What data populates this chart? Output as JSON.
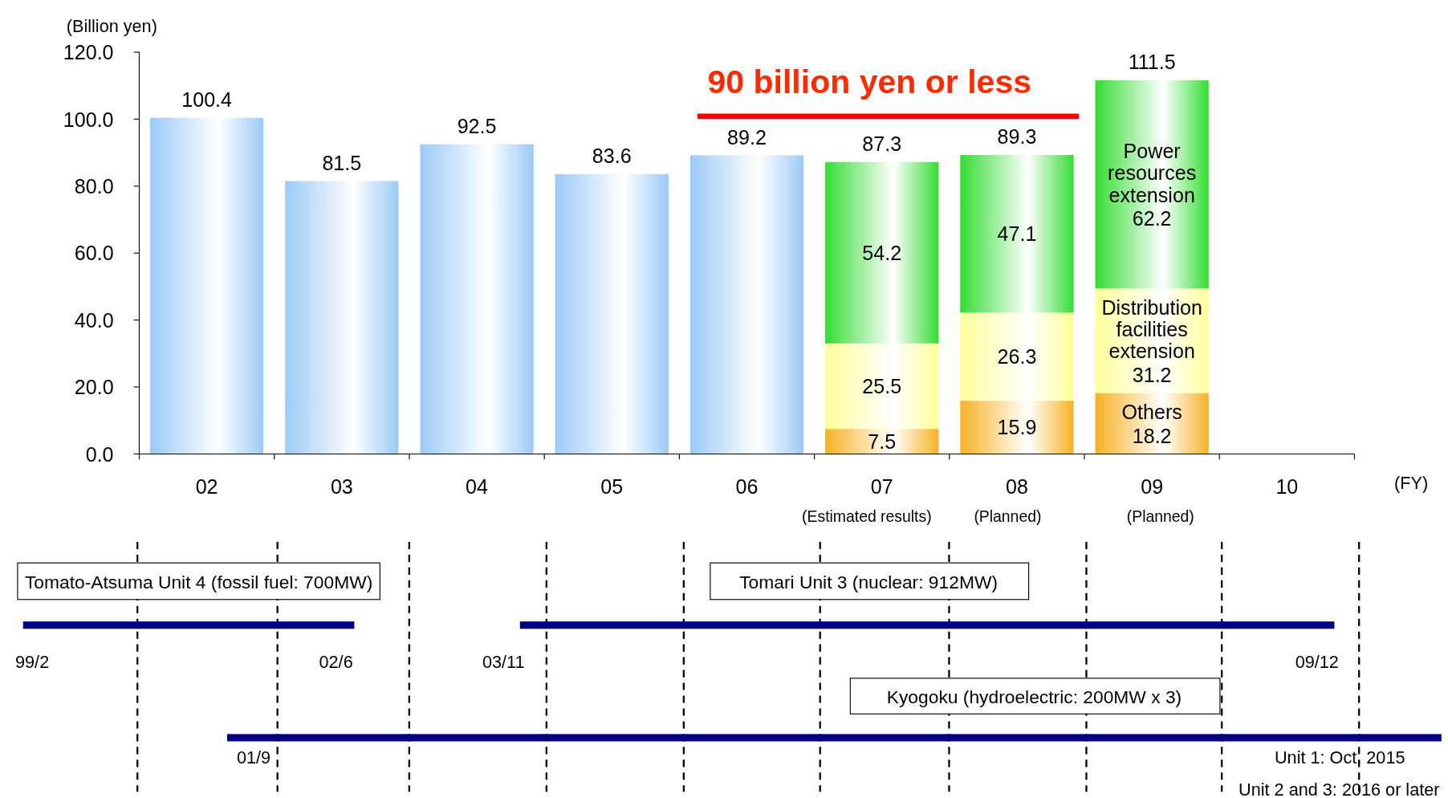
{
  "chart_data": {
    "type": "bar",
    "stacked": true,
    "ylabel": "(Billion yen)",
    "xlabel": "(FY)",
    "categories": [
      "02",
      "03",
      "04",
      "05",
      "06",
      "07",
      "08",
      "09",
      "10"
    ],
    "series": [
      {
        "color": "#9ccaf6",
        "values": [
          100.4,
          81.5,
          92.5,
          83.6,
          89.2,
          null,
          null,
          null,
          null
        ]
      },
      {
        "name": "Others",
        "color": "#f5b226",
        "values": [
          null,
          null,
          null,
          null,
          null,
          7.5,
          15.9,
          18.2,
          null
        ]
      },
      {
        "name": "Distribution facilities extension",
        "color": "#ffff9a",
        "values": [
          null,
          null,
          null,
          null,
          null,
          25.5,
          26.3,
          31.2,
          null
        ]
      },
      {
        "name": "Power resources extension",
        "color": "#33dd33",
        "values": [
          null,
          null,
          null,
          null,
          null,
          54.2,
          47.1,
          62.2,
          null
        ]
      }
    ],
    "totals": [
      null,
      null,
      null,
      null,
      null,
      "87.3",
      "89.3",
      "111.5",
      null
    ],
    "data_labels": true,
    "grid": false,
    "ylim": [
      0,
      120
    ],
    "yticks": [
      {
        "value": 0,
        "label": "0.0"
      },
      {
        "value": 20,
        "label": "20.0"
      },
      {
        "value": 40,
        "label": "40.0"
      },
      {
        "value": 60,
        "label": "60.0"
      },
      {
        "value": 80,
        "label": "80.0"
      },
      {
        "value": 100,
        "label": "100.0"
      },
      {
        "value": 120,
        "label": "120.0"
      }
    ],
    "annotations": [
      "90 billion yen or less",
      "(Estimated results)",
      "(Planned)",
      "(Planned)",
      "Tomato-Atsuma Unit 4 (fossil fuel: 700MW)",
      "99/2",
      "02/6",
      "Tomari Unit 3 (nuclear: 912MW)",
      "03/11",
      "09/12",
      "Kyogoku (hydroelectric: 200MW x 3)",
      "01/9",
      "Unit 1: Oct. 2015",
      "Unit 2 and 3: 2016 or later"
    ]
  }
}
